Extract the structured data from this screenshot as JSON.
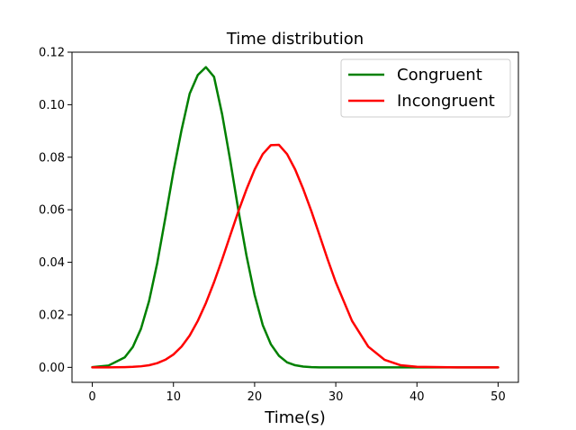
{
  "chart_data": {
    "type": "line",
    "title": "Time distribution",
    "xlabel": "Time(s)",
    "ylabel": "",
    "xlim": [
      -2.5,
      52.5
    ],
    "ylim": [
      -0.0057,
      0.12
    ],
    "xticks": [
      0,
      10,
      20,
      30,
      40,
      50
    ],
    "xtick_labels": [
      "0",
      "10",
      "20",
      "30",
      "40",
      "50"
    ],
    "yticks": [
      0.0,
      0.02,
      0.04,
      0.06,
      0.08,
      0.1,
      0.12
    ],
    "ytick_labels": [
      "0.00",
      "0.02",
      "0.04",
      "0.06",
      "0.08",
      "0.10",
      "0.12"
    ],
    "grid": false,
    "legend_position": "top-right",
    "x": [
      0,
      2,
      4,
      5,
      6,
      7,
      8,
      9,
      10,
      11,
      12,
      13,
      14,
      15,
      16,
      17,
      18,
      19,
      20,
      21,
      22,
      23,
      24,
      25,
      26,
      27,
      28,
      29,
      30,
      32,
      34,
      36,
      38,
      40,
      45,
      50
    ],
    "series": [
      {
        "name": "Congruent",
        "color": "#008000",
        "values": [
          0.0001,
          0.0007,
          0.0038,
          0.0078,
          0.0147,
          0.0253,
          0.0397,
          0.0569,
          0.0746,
          0.0904,
          0.1042,
          0.1113,
          0.1143,
          0.1106,
          0.0963,
          0.0787,
          0.0598,
          0.0425,
          0.0276,
          0.0161,
          0.0088,
          0.0044,
          0.0019,
          0.0008,
          0.0003,
          0.0001,
          0.0,
          0.0,
          0.0,
          0.0,
          0.0,
          0.0,
          0.0,
          0.0,
          0.0,
          0.0
        ]
      },
      {
        "name": "Incongruent",
        "color": "#ff0000",
        "values": [
          0.0,
          0.0,
          0.0001,
          0.0002,
          0.0004,
          0.0008,
          0.0016,
          0.0029,
          0.0049,
          0.0079,
          0.0121,
          0.0177,
          0.0245,
          0.0324,
          0.0411,
          0.0503,
          0.0594,
          0.0678,
          0.0753,
          0.0812,
          0.0846,
          0.0847,
          0.0812,
          0.0753,
          0.0678,
          0.0594,
          0.0503,
          0.0411,
          0.0324,
          0.0177,
          0.0079,
          0.0029,
          0.0008,
          0.0002,
          0.0,
          0.0
        ]
      }
    ]
  }
}
